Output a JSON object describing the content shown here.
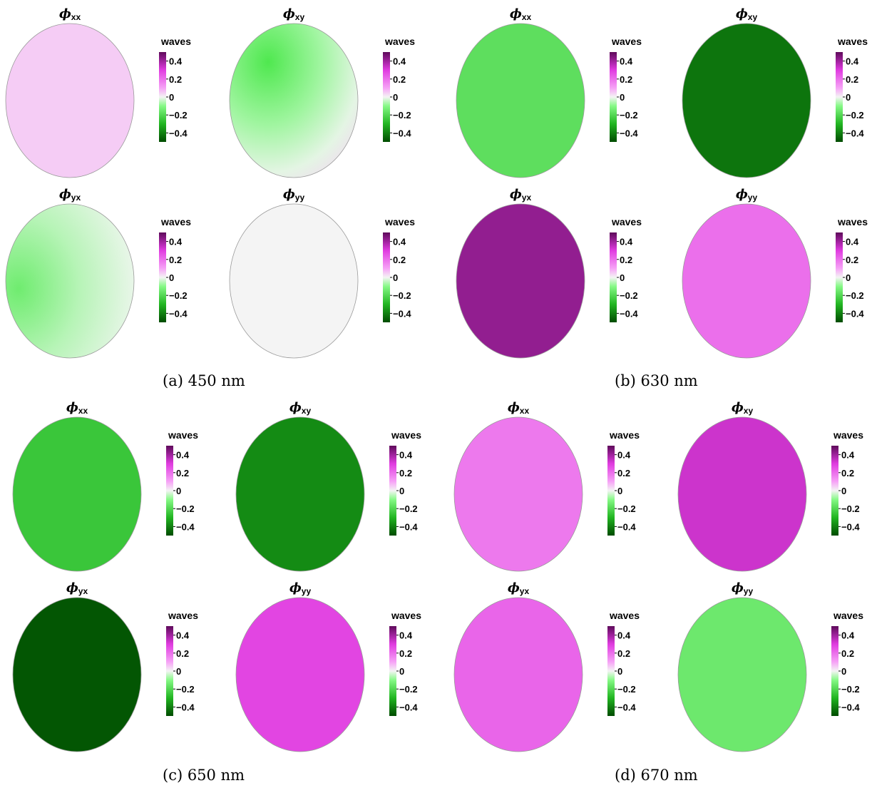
{
  "chart_data": [
    {
      "type": "heatmap",
      "caption": "(a) 450 nm",
      "panels": [
        {
          "component": "xx",
          "label": "ϕ",
          "subscript": "xx",
          "value": 0.05
        },
        {
          "component": "xy",
          "label": "ϕ",
          "subscript": "xy",
          "value": -0.12,
          "varying": true
        },
        {
          "component": "yx",
          "label": "ϕ",
          "subscript": "yx",
          "value": -0.08,
          "varying": true
        },
        {
          "component": "yy",
          "label": "ϕ",
          "subscript": "yy",
          "value": 0.0
        }
      ]
    },
    {
      "type": "heatmap",
      "caption": "(b) 630 nm",
      "panels": [
        {
          "component": "xx",
          "label": "ϕ",
          "subscript": "xx",
          "value": -0.18
        },
        {
          "component": "xy",
          "label": "ϕ",
          "subscript": "xy",
          "value": -0.42
        },
        {
          "component": "yx",
          "label": "ϕ",
          "subscript": "yx",
          "value": 0.42
        },
        {
          "component": "yy",
          "label": "ϕ",
          "subscript": "yy",
          "value": 0.2
        }
      ]
    },
    {
      "type": "heatmap",
      "caption": "(c) 650 nm",
      "panels": [
        {
          "component": "xx",
          "label": "ϕ",
          "subscript": "xx",
          "value": -0.25
        },
        {
          "component": "xy",
          "label": "ϕ",
          "subscript": "xy",
          "value": -0.38
        },
        {
          "component": "yx",
          "label": "ϕ",
          "subscript": "yx",
          "value": -0.48
        },
        {
          "component": "yy",
          "label": "ϕ",
          "subscript": "yy",
          "value": 0.28
        }
      ]
    },
    {
      "type": "heatmap",
      "caption": "(d) 670 nm",
      "panels": [
        {
          "component": "xx",
          "label": "ϕ",
          "subscript": "xx",
          "value": 0.18
        },
        {
          "component": "xy",
          "label": "ϕ",
          "subscript": "xy",
          "value": 0.33
        },
        {
          "component": "yx",
          "label": "ϕ",
          "subscript": "yx",
          "value": 0.22
        },
        {
          "component": "yy",
          "label": "ϕ",
          "subscript": "yy",
          "value": -0.15
        }
      ]
    }
  ],
  "colorbar": {
    "label": "waves",
    "range": [
      -0.5,
      0.5
    ],
    "ticks": [
      0.4,
      0.2,
      0,
      -0.2,
      -0.4
    ],
    "tick_labels": [
      "0.4",
      "0.2",
      "0",
      "−0.2",
      "−0.4"
    ],
    "colormap": [
      [
        -0.5,
        "#004b00"
      ],
      [
        -0.3,
        "#21b521"
      ],
      [
        -0.1,
        "#86f986"
      ],
      [
        0,
        "#f4f4f4"
      ],
      [
        0.1,
        "#f6a3f6"
      ],
      [
        0.3,
        "#e03be0"
      ],
      [
        0.5,
        "#5e0a5a"
      ]
    ]
  }
}
